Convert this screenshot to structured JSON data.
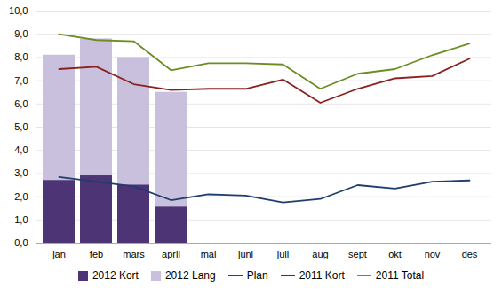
{
  "chart_data": {
    "type": "bar",
    "categories": [
      "jan",
      "feb",
      "mars",
      "april",
      "mai",
      "juni",
      "juli",
      "aug",
      "sept",
      "okt",
      "nov",
      "des"
    ],
    "series": [
      {
        "name": "2012 Kort",
        "type": "bar",
        "color": "#4d3475",
        "values": [
          2.7,
          2.9,
          2.5,
          1.55,
          null,
          null,
          null,
          null,
          null,
          null,
          null,
          null
        ]
      },
      {
        "name": "2012 Lang",
        "type": "bar",
        "color": "#c8c0dc",
        "values": [
          8.1,
          8.8,
          8.0,
          6.5,
          null,
          null,
          null,
          null,
          null,
          null,
          null,
          null
        ]
      },
      {
        "name": "Plan",
        "type": "line",
        "color": "#8b2020",
        "values": [
          7.5,
          7.6,
          6.85,
          6.6,
          6.65,
          6.65,
          7.05,
          6.05,
          6.65,
          7.1,
          7.2,
          7.95
        ]
      },
      {
        "name": "2011 Kort",
        "type": "line",
        "color": "#1f3d6e",
        "values": [
          2.85,
          2.65,
          2.45,
          1.85,
          2.1,
          2.05,
          1.75,
          1.9,
          2.5,
          2.35,
          2.65,
          2.7
        ]
      },
      {
        "name": "2011 Total",
        "type": "line",
        "color": "#6b8e23",
        "values": [
          9.0,
          8.75,
          8.7,
          7.45,
          7.75,
          7.75,
          7.7,
          6.65,
          7.3,
          7.5,
          8.1,
          8.6
        ]
      }
    ],
    "ylim": [
      0,
      10
    ],
    "yticks": [
      {
        "value": 0,
        "label": "0,0"
      },
      {
        "value": 1,
        "label": "1,0"
      },
      {
        "value": 2,
        "label": "2,0"
      },
      {
        "value": 3,
        "label": "3,0"
      },
      {
        "value": 4,
        "label": "4,0"
      },
      {
        "value": 5,
        "label": "5,0"
      },
      {
        "value": 6,
        "label": "6,0"
      },
      {
        "value": 7,
        "label": "7,0"
      },
      {
        "value": 8,
        "label": "8,0"
      },
      {
        "value": 9,
        "label": "9,0"
      },
      {
        "value": 10,
        "label": "10,0"
      }
    ],
    "grid": true,
    "legend": "bottom",
    "stacked": false
  }
}
